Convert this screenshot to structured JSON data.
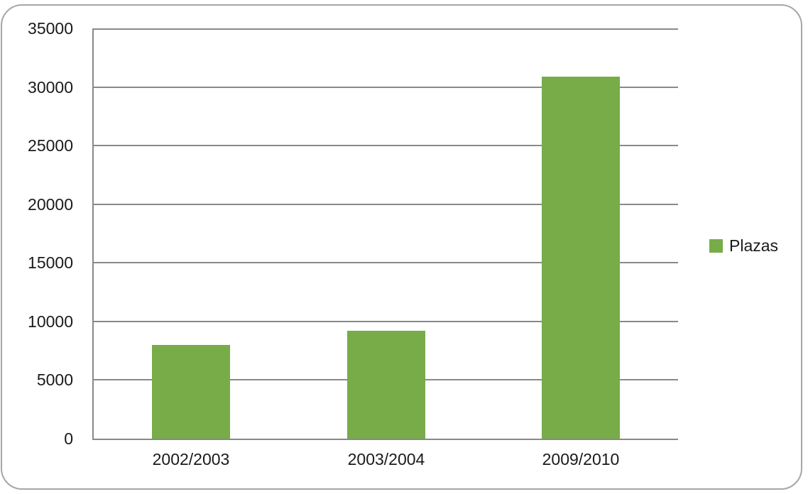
{
  "chart_data": {
    "type": "bar",
    "categories": [
      "2002/2003",
      "2003/2004",
      "2009/2010"
    ],
    "series": [
      {
        "name": "Plazas",
        "values": [
          8000,
          9200,
          30900
        ],
        "color": "#77ac49"
      }
    ],
    "title": "",
    "xlabel": "",
    "ylabel": "",
    "ylim": [
      0,
      35000
    ],
    "ytick_interval": 5000,
    "yticks": [
      0,
      5000,
      10000,
      15000,
      20000,
      25000,
      30000,
      35000
    ],
    "ytick_labels": [
      "0",
      "5000",
      "10000",
      "15000",
      "20000",
      "25000",
      "30000",
      "35000"
    ],
    "grid": true,
    "legend_position": "right"
  },
  "legend": {
    "items": [
      {
        "label": "Plazas",
        "color": "#77ac49",
        "swatch": "green-square"
      }
    ]
  },
  "colors": {
    "bar": "#77ac49",
    "gridline": "#898989",
    "axis_line": "#898989",
    "outer_border": "#a6a6a6",
    "text": "#1a1a1a",
    "background": "#ffffff"
  }
}
